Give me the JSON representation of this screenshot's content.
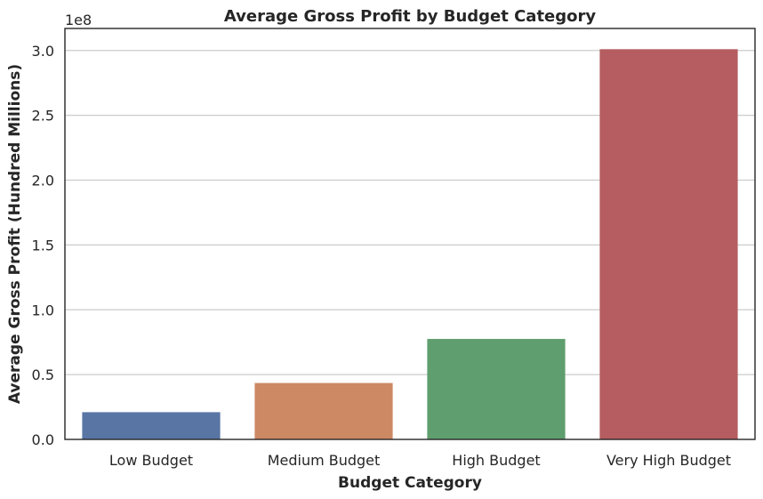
{
  "chart_data": {
    "type": "bar",
    "title": "Average Gross Profit by Budget Category",
    "xlabel": "Budget Category",
    "ylabel": "Average Gross Profit (Hundred Millions)",
    "y_offset_label": "1e8",
    "categories": [
      "Low Budget",
      "Medium Budget",
      "High Budget",
      "Very High Budget"
    ],
    "values": [
      21000000,
      43500000,
      77500000,
      301000000
    ],
    "colors": [
      "#5875a4",
      "#cc8963",
      "#5f9e6e",
      "#b55d60"
    ],
    "ylim": [
      0,
      317000000
    ],
    "y_ticks": [
      0,
      50000000,
      100000000,
      150000000,
      200000000,
      250000000,
      300000000
    ],
    "y_tick_labels": [
      "0.0",
      "0.5",
      "1.0",
      "1.5",
      "2.0",
      "2.5",
      "3.0"
    ],
    "grid": "horizontal",
    "legend": "none"
  }
}
